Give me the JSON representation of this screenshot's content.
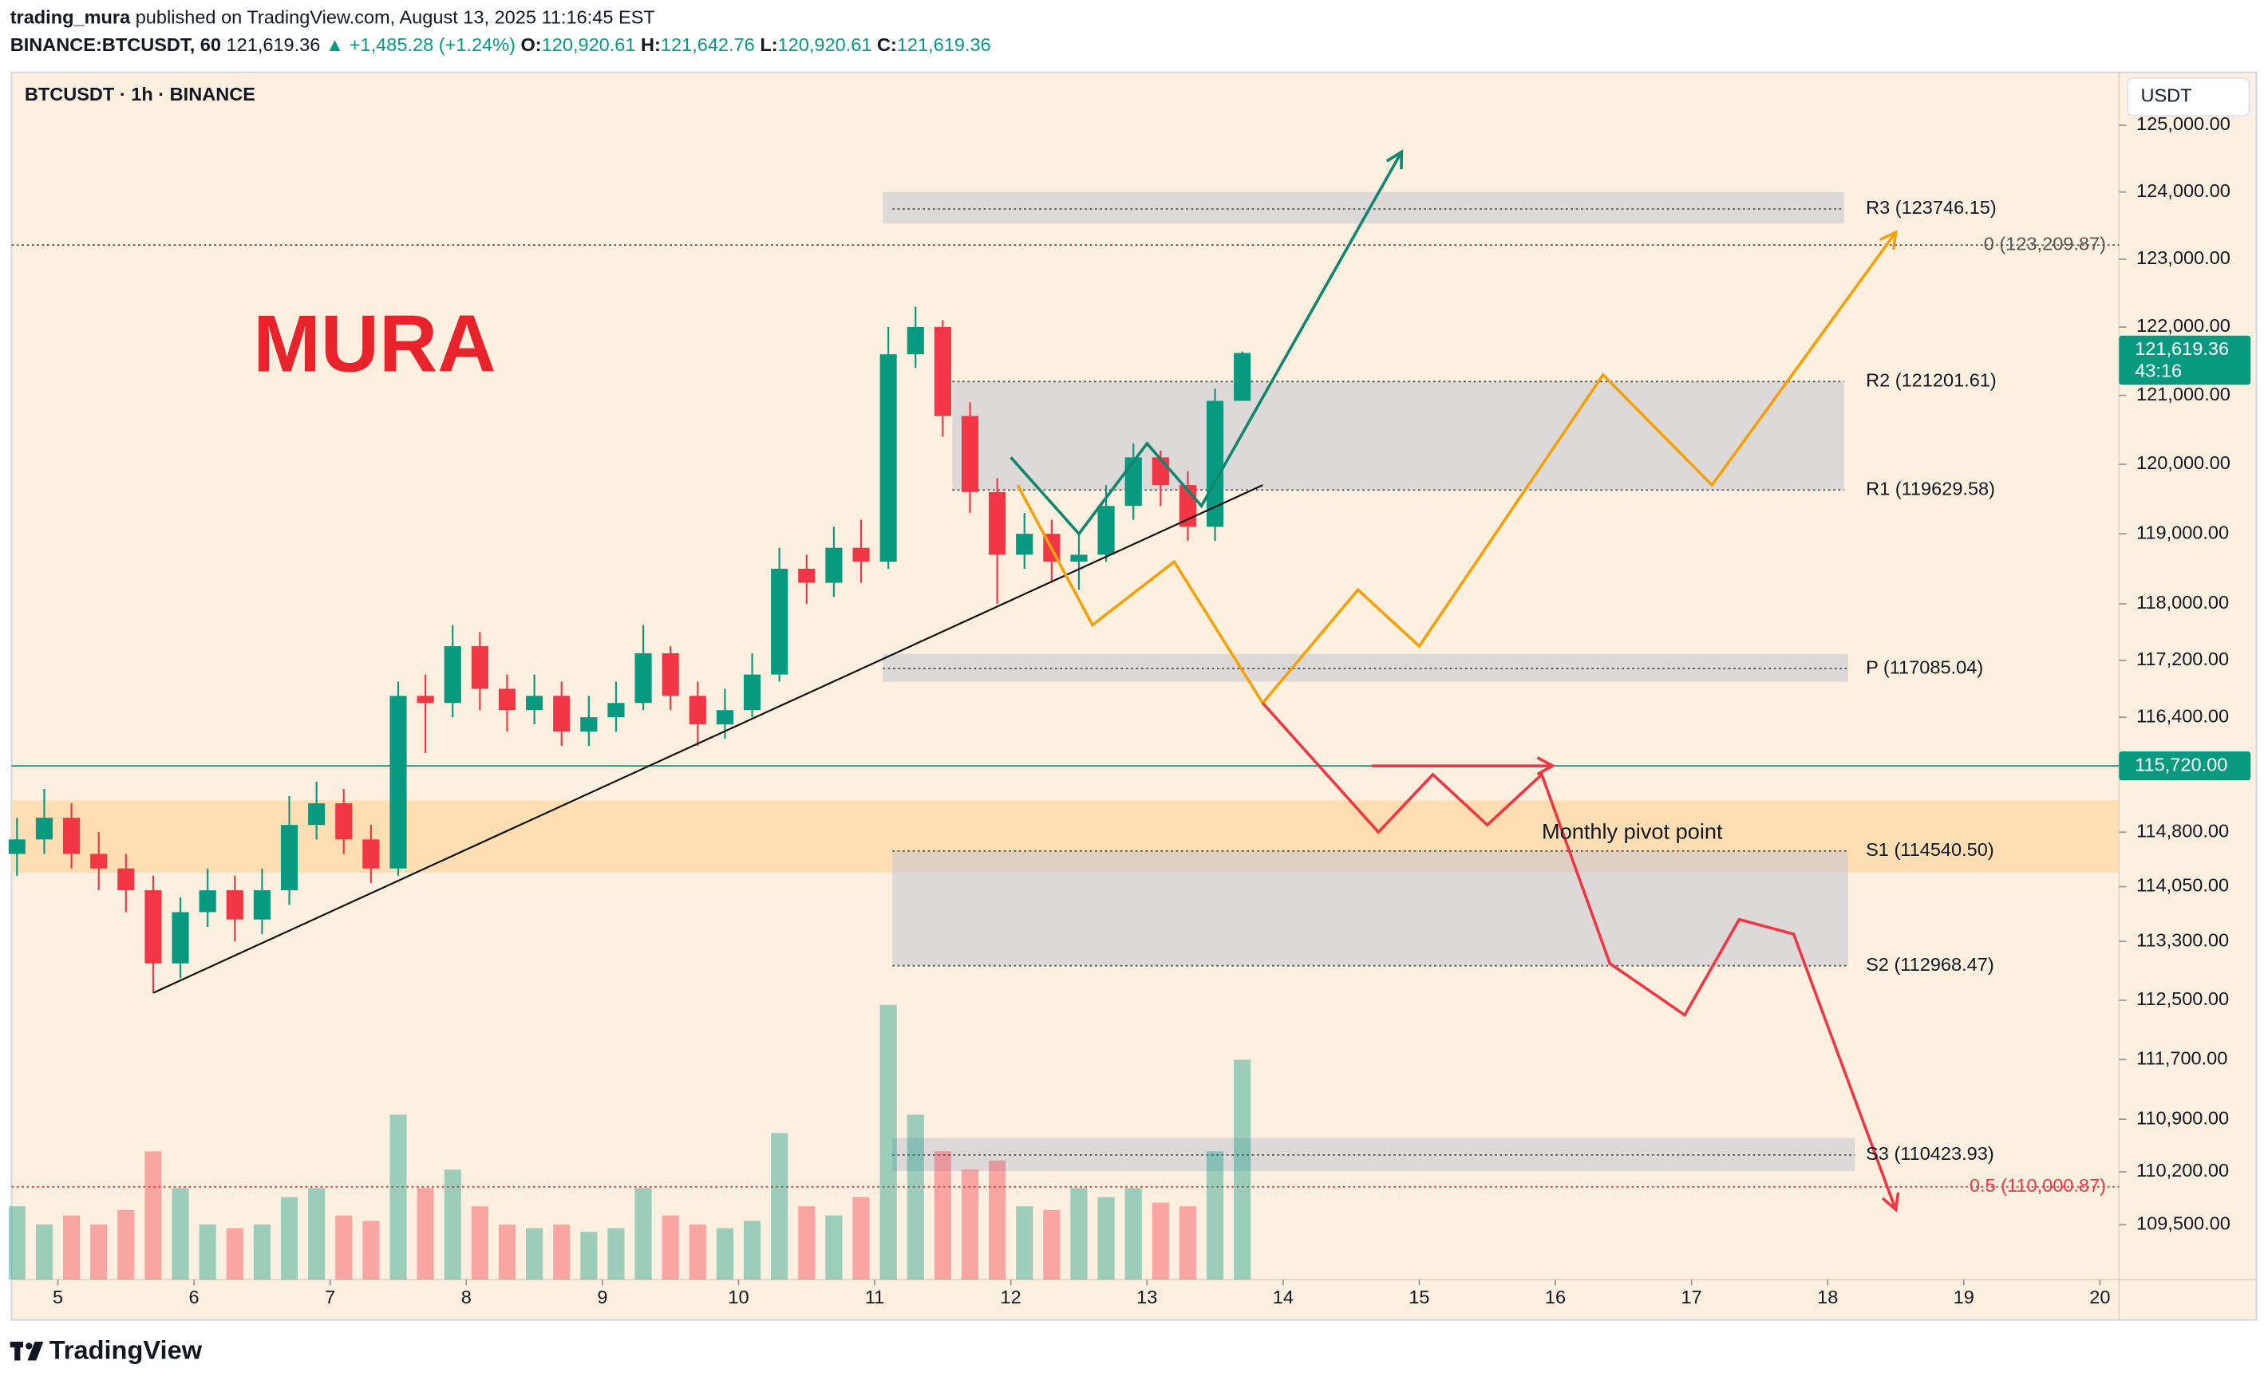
{
  "header": {
    "publisher": "trading_mura",
    "published_text": "published on TradingView.com, August 13, 2025 11:16:45 EST",
    "symbol": "BINANCE:BTCUSDT, 60",
    "price": "121,619.36",
    "change": "▲ +1,485.28 (+1.24%)",
    "ohlc": [
      {
        "k": "O:",
        "v": "120,920.61"
      },
      {
        "k": "H:",
        "v": "121,642.76"
      },
      {
        "k": "L:",
        "v": "120,920.61"
      },
      {
        "k": "C:",
        "v": "121,619.36"
      }
    ]
  },
  "legend": "BTCUSDT · 1h · BINANCE",
  "currency": "USDT",
  "watermark": "MURA",
  "footer": "TradingView",
  "chart_data": {
    "type": "candlestick",
    "log_scale": true,
    "xlim": [
      4.66,
      20.14
    ],
    "xticks": [
      5,
      6,
      7,
      8,
      9,
      10,
      11,
      12,
      13,
      14,
      15,
      16,
      17,
      18,
      19,
      20
    ],
    "ylim": [
      108780,
      125800
    ],
    "yticks": [
      {
        "value": 125000,
        "label": "125,000.00"
      },
      {
        "value": 124000,
        "label": "124,000.00"
      },
      {
        "value": 123000,
        "label": "123,000.00"
      },
      {
        "value": 122000,
        "label": "122,000.00"
      },
      {
        "value": 121000,
        "label": "121,000.00"
      },
      {
        "value": 120000,
        "label": "120,000.00"
      },
      {
        "value": 119000,
        "label": "119,000.00"
      },
      {
        "value": 118000,
        "label": "118,000.00"
      },
      {
        "value": 117200,
        "label": "117,200.00"
      },
      {
        "value": 116400,
        "label": "116,400.00"
      },
      {
        "value": 114800,
        "label": "114,800.00"
      },
      {
        "value": 114050,
        "label": "114,050.00"
      },
      {
        "value": 113300,
        "label": "113,300.00"
      },
      {
        "value": 112500,
        "label": "112,500.00"
      },
      {
        "value": 111700,
        "label": "111,700.00"
      },
      {
        "value": 110900,
        "label": "110,900.00"
      },
      {
        "value": 110200,
        "label": "110,200.00"
      },
      {
        "value": 109500,
        "label": "109,500.00"
      }
    ],
    "up_color": "#089981",
    "down_color": "#f23645",
    "candles": {
      "x": [
        4.7,
        4.9,
        5.1,
        5.3,
        5.5,
        5.7,
        5.9,
        6.1,
        6.3,
        6.5,
        6.7,
        6.9,
        7.1,
        7.3,
        7.5,
        7.7,
        7.9,
        8.1,
        8.3,
        8.5,
        8.7,
        8.9,
        9.1,
        9.3,
        9.5,
        9.7,
        9.9,
        10.1,
        10.3,
        10.5,
        10.7,
        10.9,
        11.1,
        11.3,
        11.5,
        11.7,
        11.9,
        12.1,
        12.3,
        12.5,
        12.7,
        12.9,
        13.1,
        13.3,
        13.5,
        13.7
      ],
      "open": [
        114500,
        114700,
        115000,
        114500,
        114300,
        114000,
        113000,
        113700,
        114000,
        113600,
        114000,
        114900,
        115200,
        114700,
        114300,
        116700,
        116600,
        117400,
        116800,
        116500,
        116700,
        116200,
        116400,
        116600,
        117300,
        116700,
        116300,
        116500,
        117000,
        118500,
        118300,
        118800,
        118600,
        121600,
        122000,
        120700,
        119600,
        118700,
        119000,
        118600,
        118700,
        119400,
        120100,
        119700,
        119100,
        120920.61
      ],
      "high": [
        115000,
        115400,
        115200,
        114800,
        114500,
        114200,
        113900,
        114300,
        114200,
        114300,
        115300,
        115500,
        115400,
        114900,
        116900,
        117000,
        117700,
        117600,
        117000,
        117000,
        116900,
        116700,
        116900,
        117700,
        117400,
        116900,
        116800,
        117300,
        118800,
        118700,
        119100,
        119200,
        122000,
        122300,
        122100,
        120900,
        119800,
        119300,
        119200,
        119000,
        119700,
        120300,
        120200,
        119900,
        121100,
        121642.76
      ],
      "low": [
        114200,
        114500,
        114300,
        114000,
        113700,
        112600,
        112800,
        113500,
        113300,
        113400,
        113800,
        114700,
        114500,
        114100,
        114200,
        115900,
        116400,
        116500,
        116200,
        116300,
        116000,
        116000,
        116200,
        116500,
        116500,
        116000,
        116100,
        116400,
        116900,
        118000,
        118100,
        118300,
        118500,
        121400,
        120400,
        119300,
        118000,
        118500,
        118300,
        118200,
        118600,
        119200,
        119400,
        118900,
        118900,
        120920.61
      ],
      "close": [
        114700,
        115000,
        114500,
        114300,
        114000,
        113000,
        113700,
        114000,
        113600,
        114000,
        114900,
        115200,
        114700,
        114300,
        116700,
        116600,
        117400,
        116800,
        116500,
        116700,
        116200,
        116400,
        116600,
        117300,
        116700,
        116300,
        116500,
        117000,
        118500,
        118300,
        118800,
        118600,
        121600,
        122000,
        120700,
        119600,
        118700,
        119000,
        118600,
        118700,
        119400,
        120100,
        119700,
        119100,
        120920.61,
        121619.36
      ],
      "volume": [
        400,
        300,
        350,
        300,
        380,
        700,
        500,
        300,
        280,
        300,
        450,
        500,
        350,
        320,
        900,
        500,
        600,
        400,
        300,
        280,
        300,
        260,
        280,
        500,
        350,
        300,
        280,
        320,
        800,
        400,
        350,
        450,
        1500,
        900,
        700,
        600,
        650,
        400,
        380,
        500,
        450,
        500,
        420,
        400,
        700,
        1200
      ]
    },
    "last_price": {
      "value": 121619.36,
      "label": "121,619.36",
      "countdown": "43:16"
    },
    "hline": {
      "value": 115720,
      "label": "115,720.00",
      "color": "#089981"
    },
    "band": {
      "y": [
        114240,
        115240
      ],
      "color": "#ffd9a8",
      "label": "Monthly pivot point",
      "label_x": 15.9,
      "label_y": 114790
    },
    "boxes": [
      {
        "x": [
          11.06,
          18.12
        ],
        "y": [
          123530,
          124000
        ]
      },
      {
        "x": [
          11.57,
          18.12
        ],
        "y": [
          119629.58,
          121201.61
        ]
      },
      {
        "x": [
          11.06,
          18.15
        ],
        "y": [
          116900,
          117290
        ]
      },
      {
        "x": [
          11.13,
          18.15
        ],
        "y": [
          112968.47,
          114540.5
        ]
      },
      {
        "x": [
          11.13,
          18.2
        ],
        "y": [
          110210,
          110650
        ]
      }
    ],
    "pivots": [
      {
        "label": "R3 (123746.15)",
        "value": 123746.15,
        "x": [
          11.13,
          18.12
        ]
      },
      {
        "label": "R2 (121201.61)",
        "value": 121201.61,
        "x": [
          11.57,
          18.12
        ]
      },
      {
        "label": "R1 (119629.58)",
        "value": 119629.58,
        "x": [
          11.57,
          18.12
        ]
      },
      {
        "label": "P (117085.04)",
        "value": 117085.04,
        "x": [
          11.06,
          18.15
        ]
      },
      {
        "label": "S1 (114540.50)",
        "value": 114540.5,
        "x": [
          11.13,
          18.15
        ]
      },
      {
        "label": "S2 (112968.47)",
        "value": 112968.47,
        "x": [
          11.13,
          18.15
        ]
      },
      {
        "label": "S3 (110423.93)",
        "value": 110423.93,
        "x": [
          11.13,
          18.2
        ]
      }
    ],
    "fib": [
      {
        "label": "0 (123,209.87)",
        "value": 123209.87,
        "color": "#555555"
      },
      {
        "label": "0.5 (110,000.87)",
        "value": 110000.87,
        "color": "#f23645"
      }
    ],
    "drawings": [
      {
        "name": "trendline",
        "color": "#111111",
        "arrow": false,
        "x": [
          5.7,
          13.85
        ],
        "y": [
          112600,
          119700
        ]
      },
      {
        "name": "green-path",
        "color": "#12876f",
        "arrow": true,
        "x": [
          12.0,
          12.5,
          13.0,
          13.4,
          14.87
        ],
        "y": [
          120100,
          119000,
          120300,
          119400,
          124600
        ]
      },
      {
        "name": "orange-path",
        "color": "#f5a10a",
        "arrow": true,
        "x": [
          12.05,
          12.6,
          13.2,
          13.85,
          14.55,
          15.0,
          16.35,
          17.15,
          18.5
        ],
        "y": [
          119700,
          117700,
          118600,
          116600,
          118200,
          117400,
          121300,
          119700,
          123400
        ]
      },
      {
        "name": "red-path",
        "color": "#f23645",
        "arrow": true,
        "x": [
          13.85,
          14.7,
          15.1,
          15.5,
          15.9,
          16.4,
          16.95,
          17.35,
          17.75,
          18.5
        ],
        "y": [
          116600,
          114800,
          115600,
          114900,
          115600,
          113000,
          112300,
          113600,
          113400,
          109700
        ]
      },
      {
        "name": "red-arrow",
        "color": "#f23645",
        "arrow": true,
        "x": [
          14.65,
          15.98
        ],
        "y": [
          115720,
          115720
        ]
      }
    ]
  }
}
